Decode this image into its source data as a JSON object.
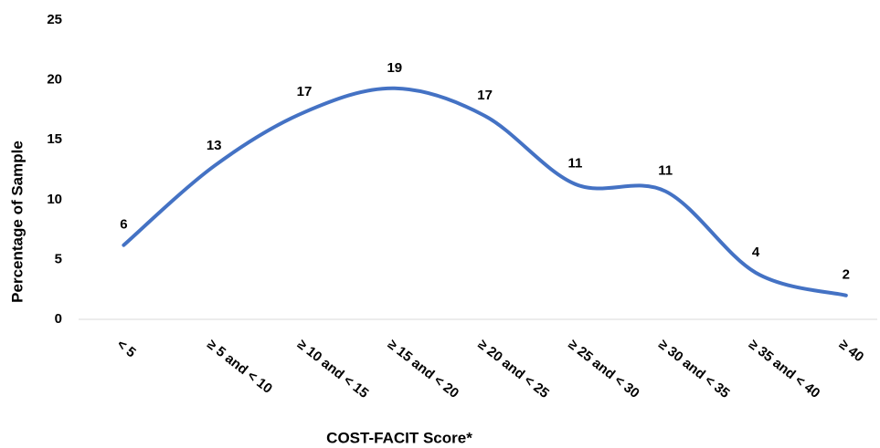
{
  "chart_data": {
    "type": "line",
    "x_label": "COST-FACIT Score*",
    "y_label": "Percentage of Sample",
    "categories": [
      "< 5",
      "≥ 5 and < 10",
      "≥ 10 and < 15",
      "≥ 15 and < 20",
      "≥ 20 and < 25",
      "≥ 25 and < 30",
      "≥ 30 and < 35",
      "≥ 35 and < 40",
      "≥ 40"
    ],
    "values": [
      6.2,
      12.8,
      17.3,
      19.3,
      17.0,
      11.3,
      10.7,
      3.9,
      2.0
    ],
    "value_labels": [
      "6",
      "13",
      "17",
      "19",
      "17",
      "11",
      "11",
      "4",
      "2"
    ],
    "color": "#4472c4",
    "smooth": true,
    "ylim": [
      0,
      25
    ],
    "yticks": [
      0,
      5,
      10,
      15,
      20,
      25
    ],
    "grid": false
  }
}
